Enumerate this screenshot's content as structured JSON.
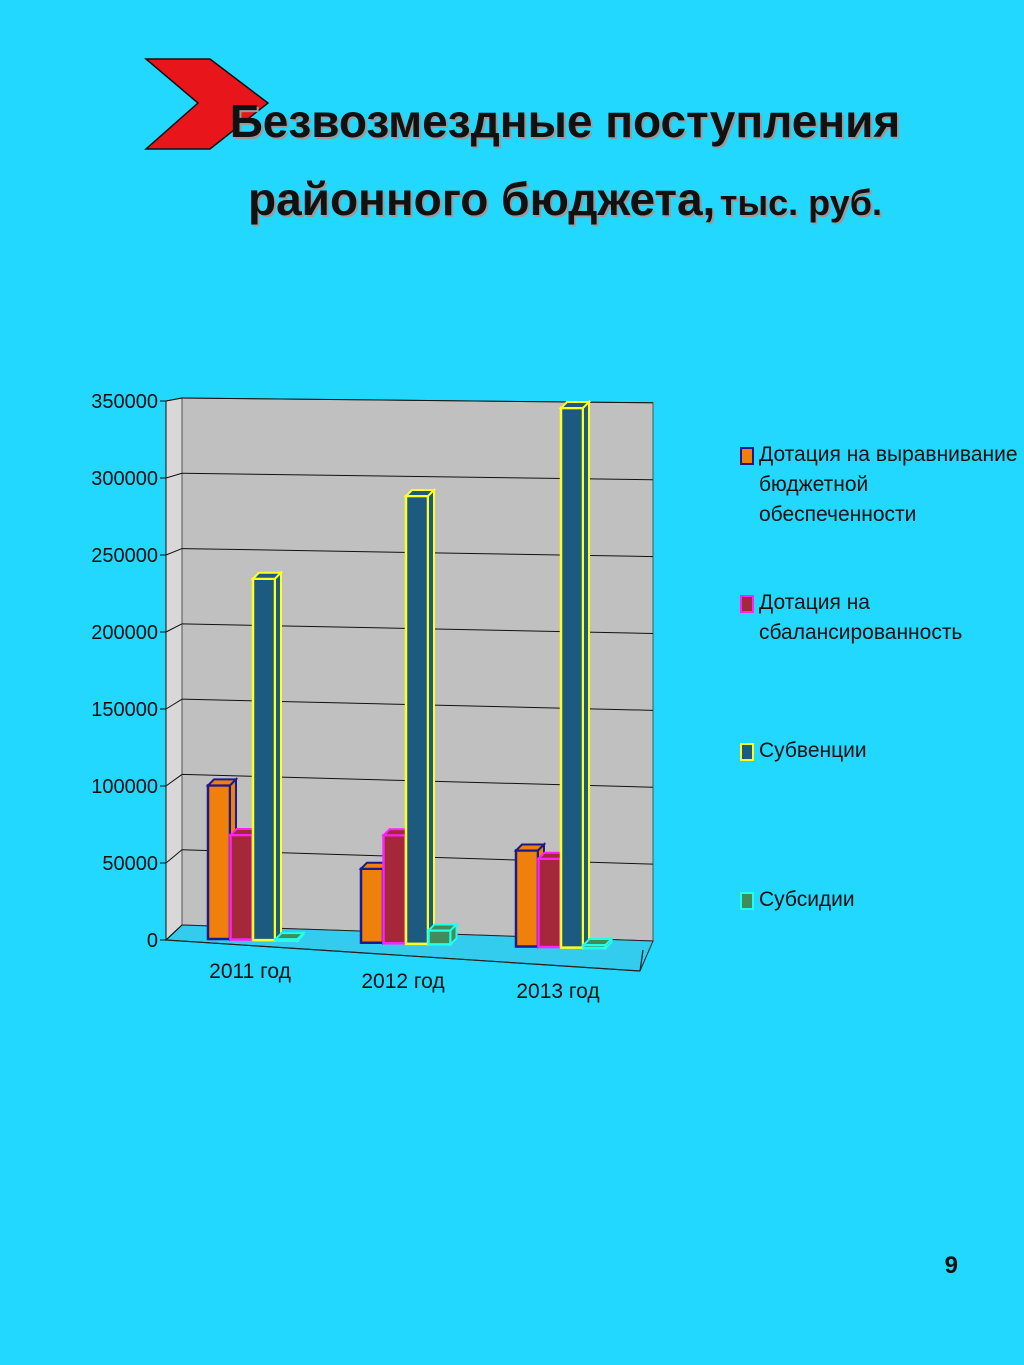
{
  "slide": {
    "title_bold": "Безвозмездные поступления районного бюджета,",
    "title_unit": "тыс. руб",
    "title_end": ".",
    "page_number": "9",
    "arrow_color": "#e8161a"
  },
  "chart_data": {
    "type": "bar",
    "categories": [
      "2011 год",
      "2012 год",
      "2013 год"
    ],
    "ylim": [
      0,
      350000
    ],
    "yticks": [
      "0",
      "50000",
      "100000",
      "150000",
      "200000",
      "250000",
      "300000",
      "350000"
    ],
    "series": [
      {
        "name": "Дотация на выравнивание бюджетной обеспеченности",
        "values": [
          100000,
          48000,
          62000
        ],
        "color": "#f0800c",
        "edge": "#1a1a8c"
      },
      {
        "name": "Дотация на сбалансированность",
        "values": [
          68000,
          70000,
          57000
        ],
        "color": "#a4283a",
        "edge": "#ff22ff"
      },
      {
        "name": "Субвенции",
        "values": [
          235000,
          290000,
          348000
        ],
        "color": "#1d5a80",
        "edge": "#ffff22"
      },
      {
        "name": "Субсидии",
        "values": [
          1000,
          9000,
          2000
        ],
        "color": "#3f8e58",
        "edge": "#22ffee"
      }
    ],
    "legend_position": "right",
    "grid": true
  }
}
